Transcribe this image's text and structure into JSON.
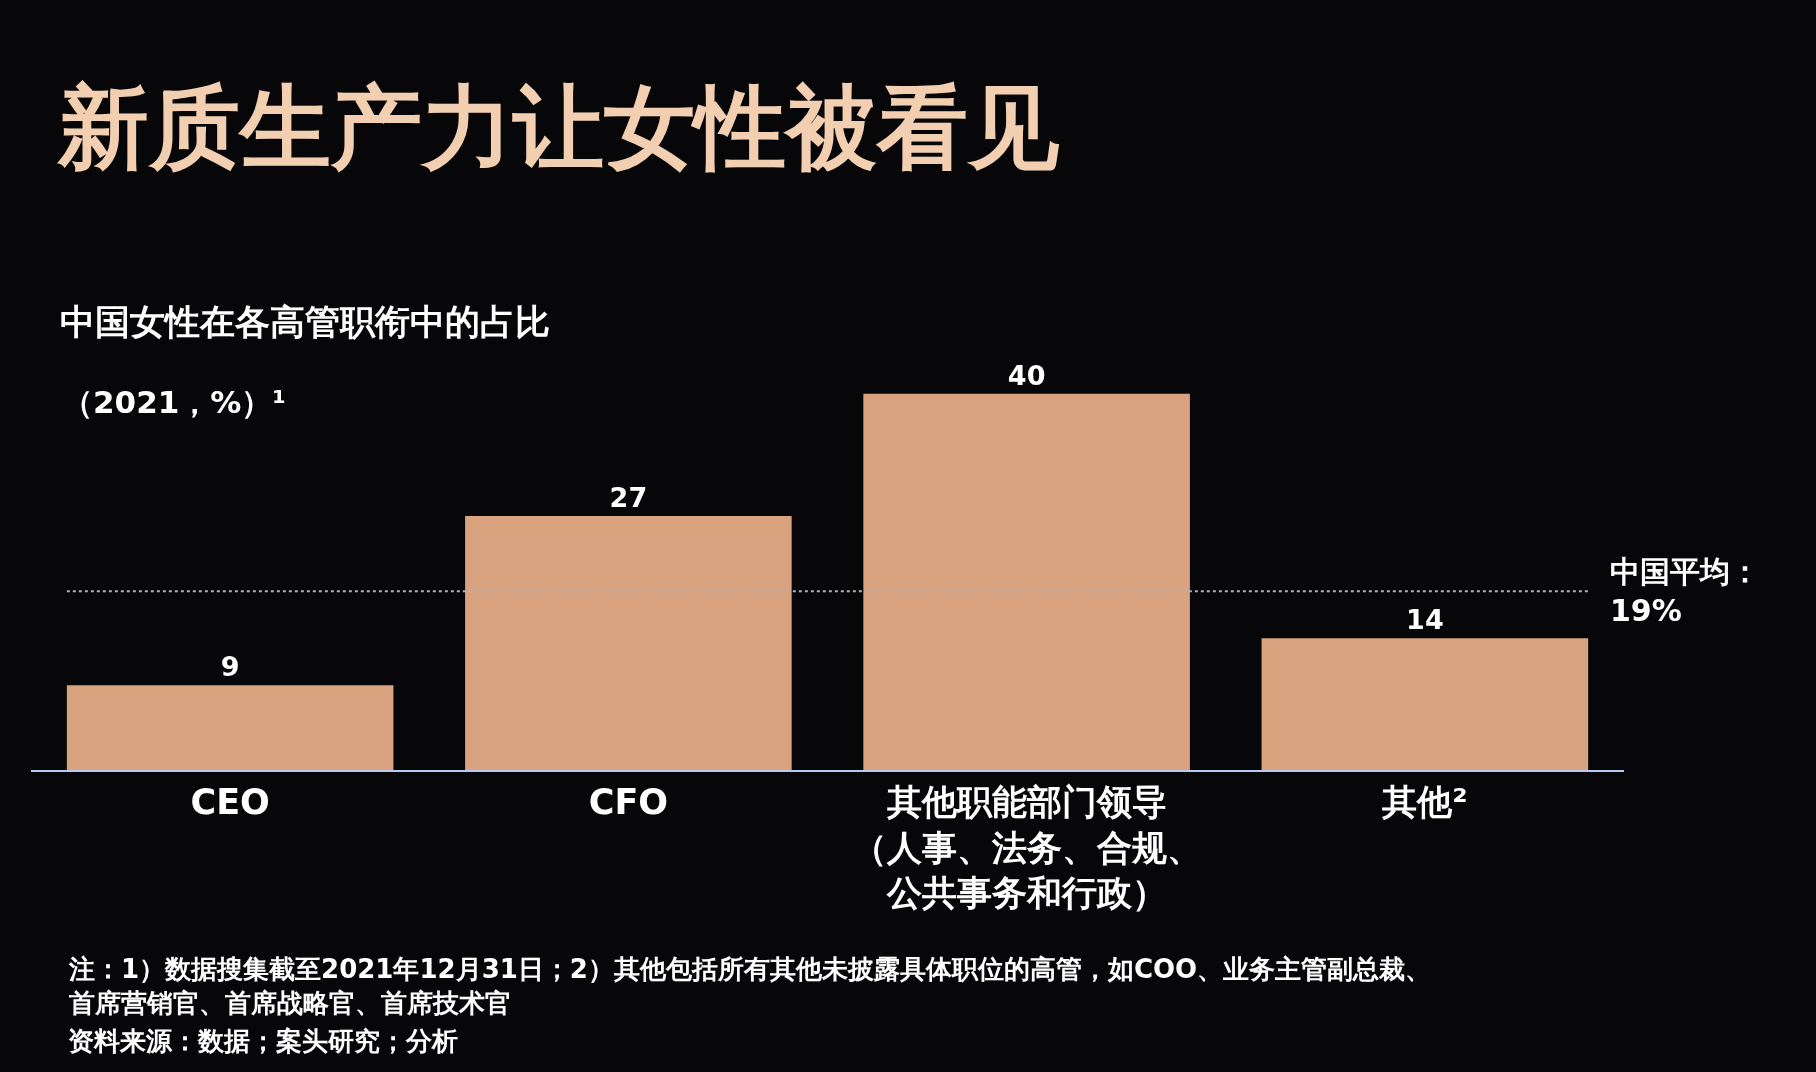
{
  "chart_data": {
    "type": "bar",
    "title": "新质生产力让女性被看见",
    "subtitle": "中国女性在各高管职衔中的占比",
    "ylabel": "（2021，%）¹",
    "categories": [
      "CEO",
      "CFO",
      "其他职能部门领导（人事、法务、合规、公共事务和行政）",
      "其他²"
    ],
    "values": [
      9,
      27,
      40,
      14
    ],
    "color": "#d9a37f",
    "data_labels": true,
    "tick_labels": "x",
    "grid": false,
    "ref_lines": [
      {
        "axis": "y",
        "value": 19,
        "label": "中国平均：19%",
        "color": "#aab2ba",
        "line_style": "dotted"
      }
    ],
    "annotations": [
      "注：1）数据搜集截至2021年12月31日；2）其他包括所有其他未披露具体职位的高管，如COO、业务主管副总裁、首席营销官、首席战略官、首席技术官",
      "资料来源：数据；案头研究；分析"
    ]
  }
}
